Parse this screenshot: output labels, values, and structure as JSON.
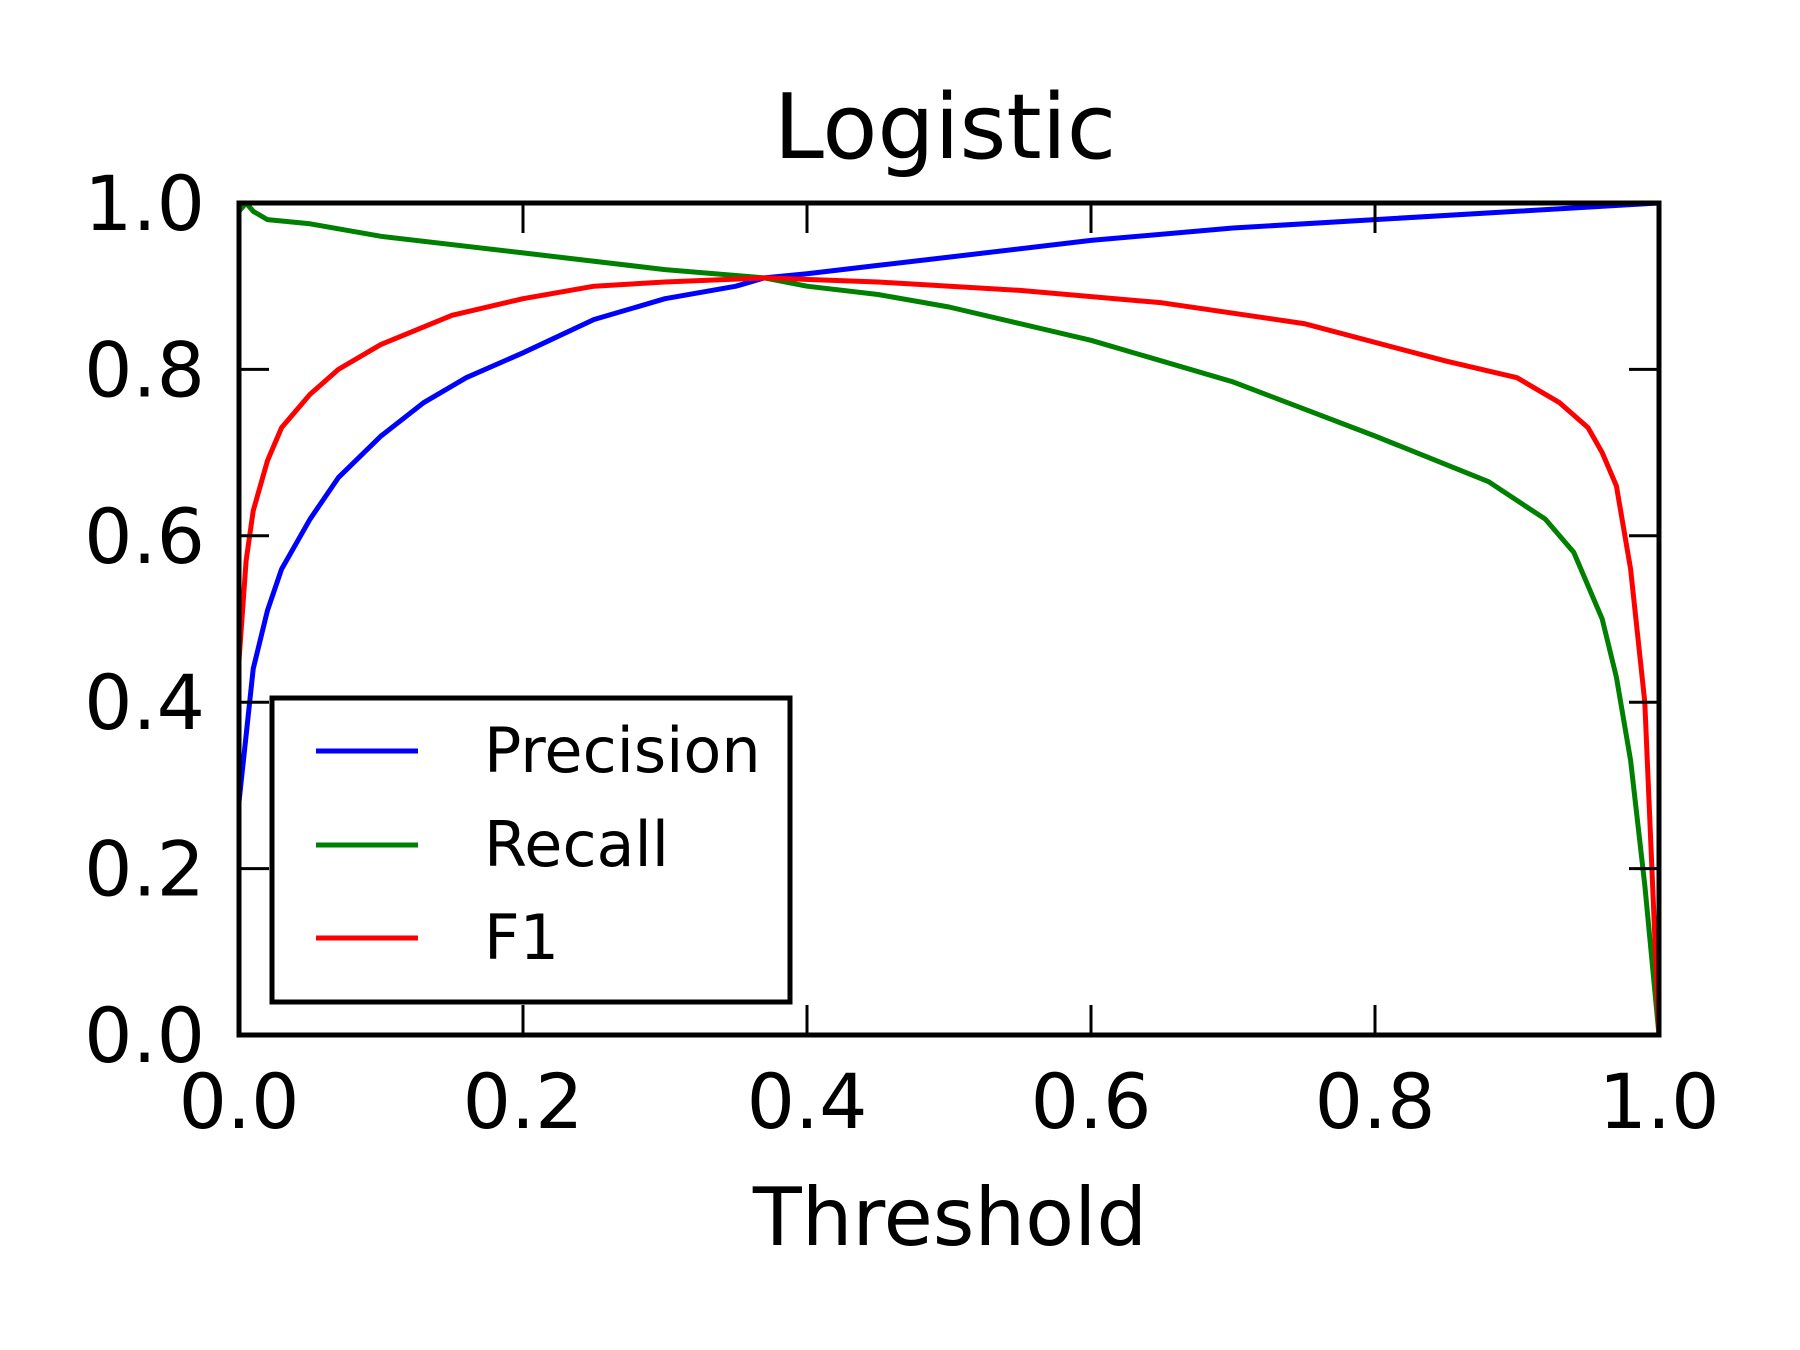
{
  "chart_data": {
    "type": "line",
    "title": "Logistic",
    "xlabel": "Threshold",
    "ylabel": "",
    "xlim": [
      0.0,
      1.0
    ],
    "ylim": [
      0.0,
      1.0
    ],
    "grid": false,
    "legend_position": "lower-left",
    "x_ticks": [
      "0.0",
      "0.2",
      "0.4",
      "0.6",
      "0.8",
      "1.0"
    ],
    "y_ticks": [
      "0.0",
      "0.2",
      "0.4",
      "0.6",
      "0.8",
      "1.0"
    ],
    "series": [
      {
        "name": "Precision",
        "color": "#0000ff",
        "x": [
          0.0,
          0.01,
          0.02,
          0.03,
          0.05,
          0.07,
          0.1,
          0.13,
          0.16,
          0.2,
          0.25,
          0.3,
          0.35,
          0.37,
          0.4,
          0.45,
          0.5,
          0.6,
          0.7,
          0.8,
          0.9,
          1.0
        ],
        "y": [
          0.28,
          0.44,
          0.51,
          0.56,
          0.62,
          0.67,
          0.72,
          0.76,
          0.79,
          0.82,
          0.86,
          0.885,
          0.9,
          0.91,
          0.915,
          0.925,
          0.935,
          0.955,
          0.97,
          0.98,
          0.99,
          1.0
        ]
      },
      {
        "name": "Recall",
        "color": "#008000",
        "x": [
          0.0,
          0.005,
          0.01,
          0.02,
          0.05,
          0.1,
          0.2,
          0.3,
          0.37,
          0.4,
          0.45,
          0.5,
          0.6,
          0.7,
          0.8,
          0.88,
          0.92,
          0.94,
          0.96,
          0.97,
          0.98,
          0.99,
          1.0
        ],
        "y": [
          0.99,
          1.0,
          0.99,
          0.98,
          0.975,
          0.96,
          0.94,
          0.92,
          0.91,
          0.9,
          0.89,
          0.875,
          0.835,
          0.785,
          0.72,
          0.665,
          0.62,
          0.58,
          0.5,
          0.43,
          0.33,
          0.18,
          0.0
        ]
      },
      {
        "name": "F1",
        "color": "#ff0000",
        "x": [
          0.0,
          0.005,
          0.01,
          0.02,
          0.03,
          0.05,
          0.07,
          0.1,
          0.15,
          0.2,
          0.25,
          0.3,
          0.37,
          0.45,
          0.55,
          0.65,
          0.75,
          0.85,
          0.9,
          0.93,
          0.95,
          0.96,
          0.97,
          0.98,
          0.99,
          1.0
        ],
        "y": [
          0.45,
          0.57,
          0.63,
          0.69,
          0.73,
          0.77,
          0.8,
          0.83,
          0.865,
          0.885,
          0.9,
          0.905,
          0.91,
          0.905,
          0.895,
          0.88,
          0.855,
          0.81,
          0.79,
          0.76,
          0.73,
          0.7,
          0.66,
          0.56,
          0.4,
          0.0
        ]
      }
    ]
  }
}
